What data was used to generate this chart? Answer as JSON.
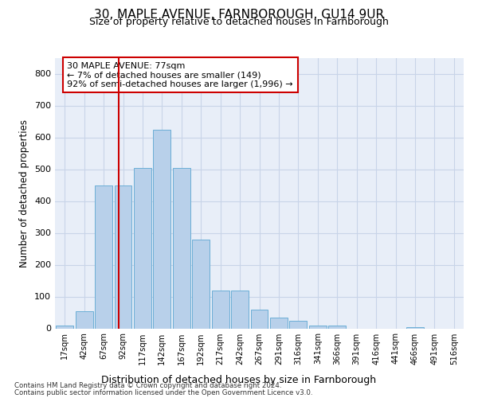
{
  "title": "30, MAPLE AVENUE, FARNBOROUGH, GU14 9UR",
  "subtitle": "Size of property relative to detached houses in Farnborough",
  "xlabel": "Distribution of detached houses by size in Farnborough",
  "ylabel": "Number of detached properties",
  "categories": [
    "17sqm",
    "42sqm",
    "67sqm",
    "92sqm",
    "117sqm",
    "142sqm",
    "167sqm",
    "192sqm",
    "217sqm",
    "242sqm",
    "267sqm",
    "291sqm",
    "316sqm",
    "341sqm",
    "366sqm",
    "391sqm",
    "416sqm",
    "441sqm",
    "466sqm",
    "491sqm",
    "516sqm"
  ],
  "bar_heights": [
    10,
    55,
    450,
    450,
    505,
    625,
    505,
    280,
    120,
    120,
    60,
    35,
    25,
    10,
    8,
    0,
    0,
    0,
    5,
    0,
    0
  ],
  "bar_color": "#b8d0ea",
  "bar_edge_color": "#6baed6",
  "grid_color": "#c8d4e8",
  "background_color": "#e8eef8",
  "vline_x_index": 2.77,
  "vline_color": "#cc0000",
  "annotation_text": "30 MAPLE AVENUE: 77sqm\n← 7% of detached houses are smaller (149)\n92% of semi-detached houses are larger (1,996) →",
  "annotation_box_color": "#ffffff",
  "annotation_box_edge_color": "#cc0000",
  "ylim": [
    0,
    850
  ],
  "yticks": [
    0,
    100,
    200,
    300,
    400,
    500,
    600,
    700,
    800
  ],
  "footer_line1": "Contains HM Land Registry data © Crown copyright and database right 2024.",
  "footer_line2": "Contains public sector information licensed under the Open Government Licence v3.0."
}
